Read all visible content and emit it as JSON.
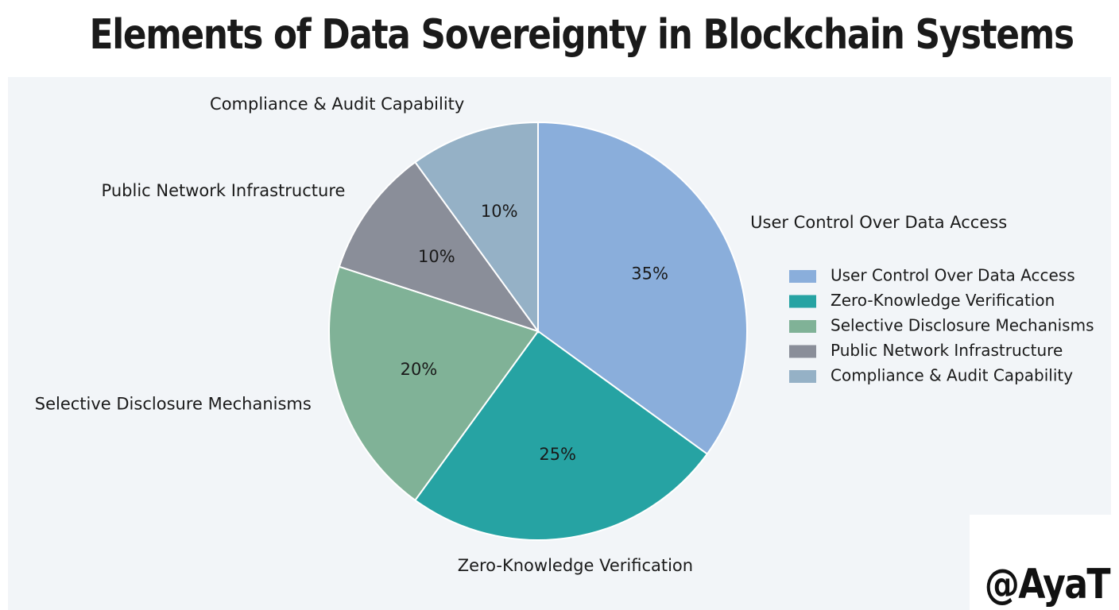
{
  "page": {
    "title": "Elements of Data Sovereignty in Blockchain Systems",
    "watermark": "@AyaT"
  },
  "chart_data": {
    "type": "pie",
    "title": "Elements of Data Sovereignty in Blockchain Systems",
    "slices": [
      {
        "label": "User Control Over Data Access",
        "value": 35,
        "value_label": "35%",
        "color": "#8aaedb"
      },
      {
        "label": "Zero-Knowledge Verification",
        "value": 25,
        "value_label": "25%",
        "color": "#26a3a3"
      },
      {
        "label": "Selective Disclosure Mechanisms",
        "value": 20,
        "value_label": "20%",
        "color": "#80b297"
      },
      {
        "label": "Public Network Infrastructure",
        "value": 10,
        "value_label": "10%",
        "color": "#8a8e99"
      },
      {
        "label": "Compliance & Audit Capability",
        "value": 10,
        "value_label": "10%",
        "color": "#95b1c6"
      }
    ],
    "start_angle": "12 o'clock",
    "direction": "clockwise",
    "legend": {
      "placement": "right",
      "entries": [
        "User Control Over Data Access",
        "Zero-Knowledge Verification",
        "Selective Disclosure Mechanisms",
        "Public Network Infrastructure",
        "Compliance & Audit Capability"
      ]
    }
  }
}
